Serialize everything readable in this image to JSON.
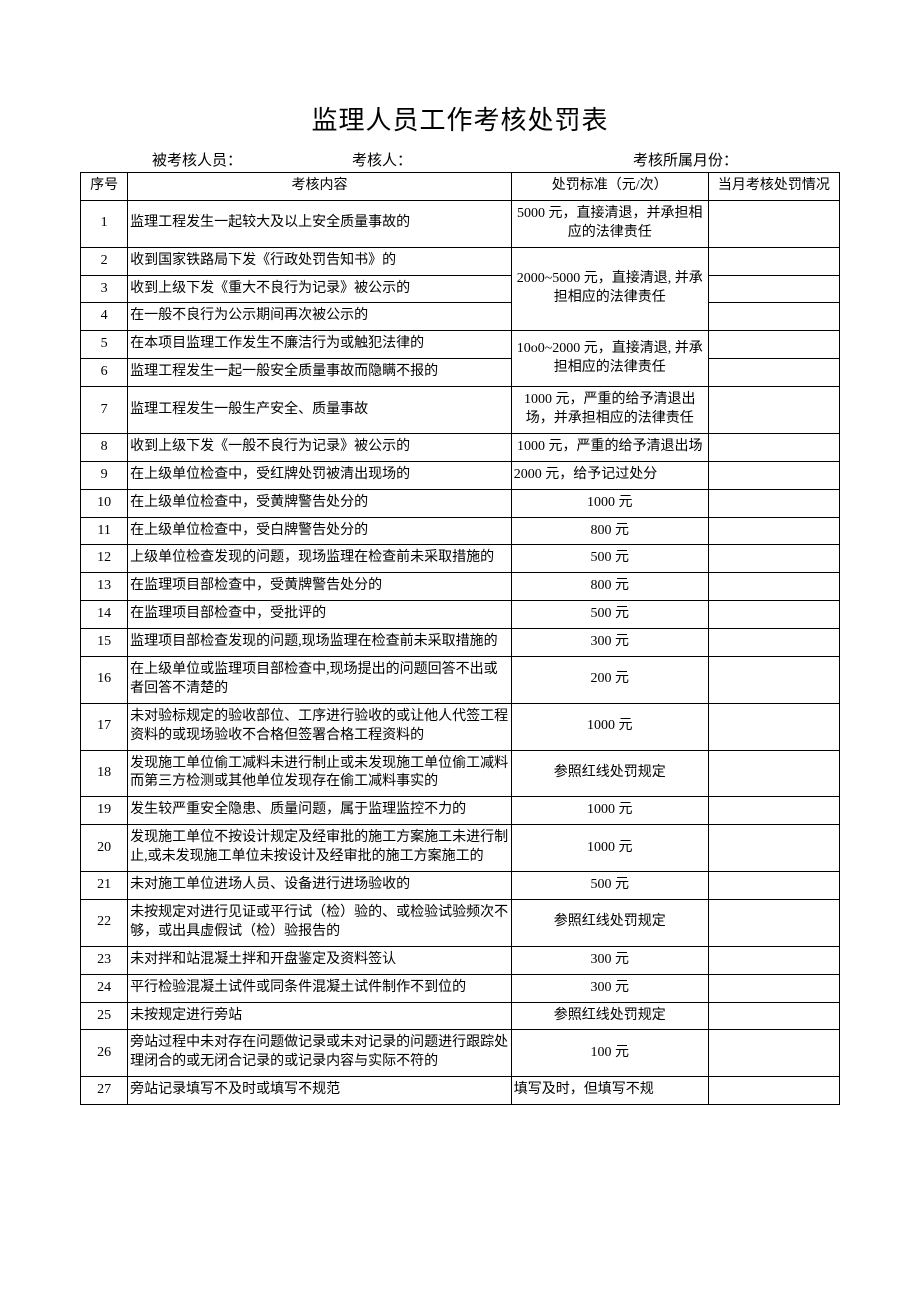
{
  "title": "监理人员工作考核处罚表",
  "subheader": {
    "person_label": "被考核人员：",
    "assessor_label": "考核人：",
    "month_label": "考核所属月份："
  },
  "columns": {
    "seq": "序号",
    "content": "考核内容",
    "standard": "处罚标准（元/次）",
    "status": "当月考核处罚情况"
  },
  "rows": [
    {
      "seq": "1",
      "content": "监理工程发生一起较大及以上安全质量事故的",
      "standard": "5000 元，直接清退，并承担相应的法律责任"
    },
    {
      "seq": "2",
      "content": "收到国家铁路局下发《行政处罚告知书》的"
    },
    {
      "seq": "3",
      "content": "收到上级下发《重大不良行为记录》被公示的"
    },
    {
      "seq": "4",
      "content": "在一般不良行为公示期间再次被公示的"
    },
    {
      "seq": "5",
      "content": "在本项目监理工作发生不廉洁行为或触犯法律的"
    },
    {
      "seq": "6",
      "content": "监理工程发生一起一般安全质量事故而隐瞒不报的"
    },
    {
      "seq": "7",
      "content": "监理工程发生一般生产安全、质量事故",
      "standard": "1000 元，严重的给予清退出场，并承担相应的法律责任"
    },
    {
      "seq": "8",
      "content": "收到上级下发《一般不良行为记录》被公示的",
      "standard": "1000 元，严重的给予清退出场"
    },
    {
      "seq": "9",
      "content": "在上级单位检查中，受红牌处罚被清出现场的",
      "standard": "2000 元，给予记过处分",
      "std_left": true
    },
    {
      "seq": "10",
      "content": "在上级单位检查中，受黄牌警告处分的",
      "standard": "1000 元"
    },
    {
      "seq": "11",
      "content": "在上级单位检查中，受白牌警告处分的",
      "standard": "800 元"
    },
    {
      "seq": "12",
      "content": "上级单位检查发现的问题，现场监理在检查前未采取措施的",
      "standard": "500 元"
    },
    {
      "seq": "13",
      "content": "在监理项目部检查中，受黄牌警告处分的",
      "standard": "800 元"
    },
    {
      "seq": "14",
      "content": "在监理项目部检查中，受批评的",
      "standard": "500 元"
    },
    {
      "seq": "15",
      "content": "监理项目部检查发现的问题,现场监理在检查前未采取措施的",
      "standard": "300 元"
    },
    {
      "seq": "16",
      "content": "在上级单位或监理项目部检查中,现场提出的问题回答不出或者回答不清楚的",
      "standard": "200 元"
    },
    {
      "seq": "17",
      "content": "未对验标规定的验收部位、工序进行验收的或让他人代签工程资料的或现场验收不合格但签署合格工程资料的",
      "standard": "1000 元"
    },
    {
      "seq": "18",
      "content": "发现施工单位偷工减料未进行制止或未发现施工单位偷工减料而第三方检测或其他单位发现存在偷工减料事实的",
      "standard": "参照红线处罚规定"
    },
    {
      "seq": "19",
      "content": "发生较严重安全隐患、质量问题，属于监理监控不力的",
      "standard": "1000 元"
    },
    {
      "seq": "20",
      "content": "发现施工单位不按设计规定及经审批的施工方案施工未进行制止,或未发现施工单位未按设计及经审批的施工方案施工的",
      "standard": "1000 元"
    },
    {
      "seq": "21",
      "content": "未对施工单位进场人员、设备进行进场验收的",
      "standard": "500 元"
    },
    {
      "seq": "22",
      "content": "未按规定对进行见证或平行试（检）验的、或检验试验频次不够，或出具虚假试（检）验报告的",
      "standard": "参照红线处罚规定"
    },
    {
      "seq": "23",
      "content": "未对拌和站混凝土拌和开盘鉴定及资料签认",
      "standard": "300 元"
    },
    {
      "seq": "24",
      "content": "平行检验混凝土试件或同条件混凝土试件制作不到位的",
      "standard": "300 元"
    },
    {
      "seq": "25",
      "content": "未按规定进行旁站",
      "standard": "参照红线处罚规定"
    },
    {
      "seq": "26",
      "content": "旁站过程中未对存在问题做记录或未对记录的问题进行跟踪处理闭合的或无闭合记录的或记录内容与实际不符的",
      "standard": "100 元"
    },
    {
      "seq": "27",
      "content": "旁站记录填写不及时或填写不规范",
      "standard": "填写及时，但填写不规",
      "std_left": true
    }
  ],
  "merged_standards": {
    "g234": "2000~5000 元，直接清退, 并承担相应的法律责任",
    "g56": "10o0~2000 元，直接清退, 并承担相应的法律责任"
  }
}
